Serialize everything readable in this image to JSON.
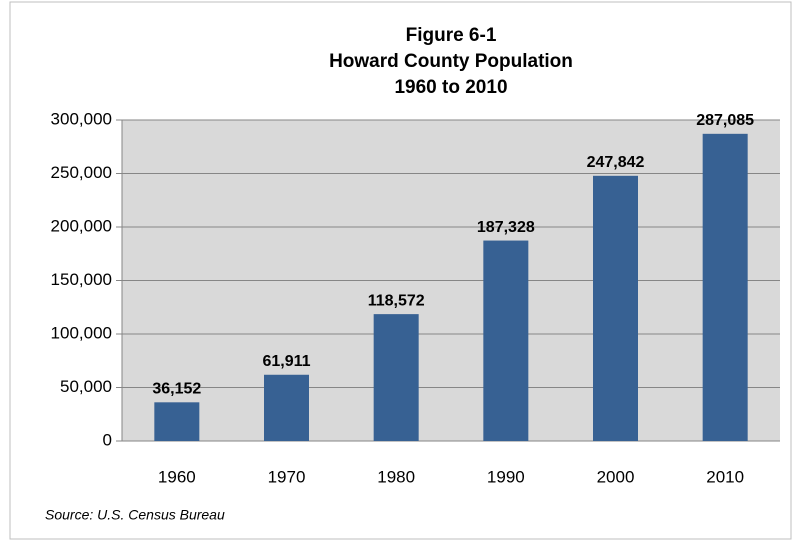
{
  "chart_data": {
    "type": "bar",
    "title": [
      "Figure 6-1",
      "Howard County Population",
      "1960 to 2010"
    ],
    "note": "Source:  U.S. Census Bureau",
    "categories": [
      "1960",
      "1970",
      "1980",
      "1990",
      "2000",
      "2010"
    ],
    "values": [
      36152,
      61911,
      118572,
      187328,
      247842,
      287085
    ],
    "value_labels": [
      "36,152",
      "61,911",
      "118,572",
      "187,328",
      "247,842",
      "287,085"
    ],
    "color": "#376193",
    "ylim": [
      0,
      300000
    ],
    "yticks": [
      0,
      {
        "value": 50000,
        "label": "50,000"
      },
      {
        "value": 100000,
        "label": "100,000"
      },
      {
        "value": 150000,
        "label": "150,000"
      },
      {
        "value": 200000,
        "label": "200,000"
      },
      {
        "value": 250000,
        "label": "250,000"
      },
      {
        "value": 300000,
        "label": "300,000"
      }
    ],
    "grid": true
  }
}
